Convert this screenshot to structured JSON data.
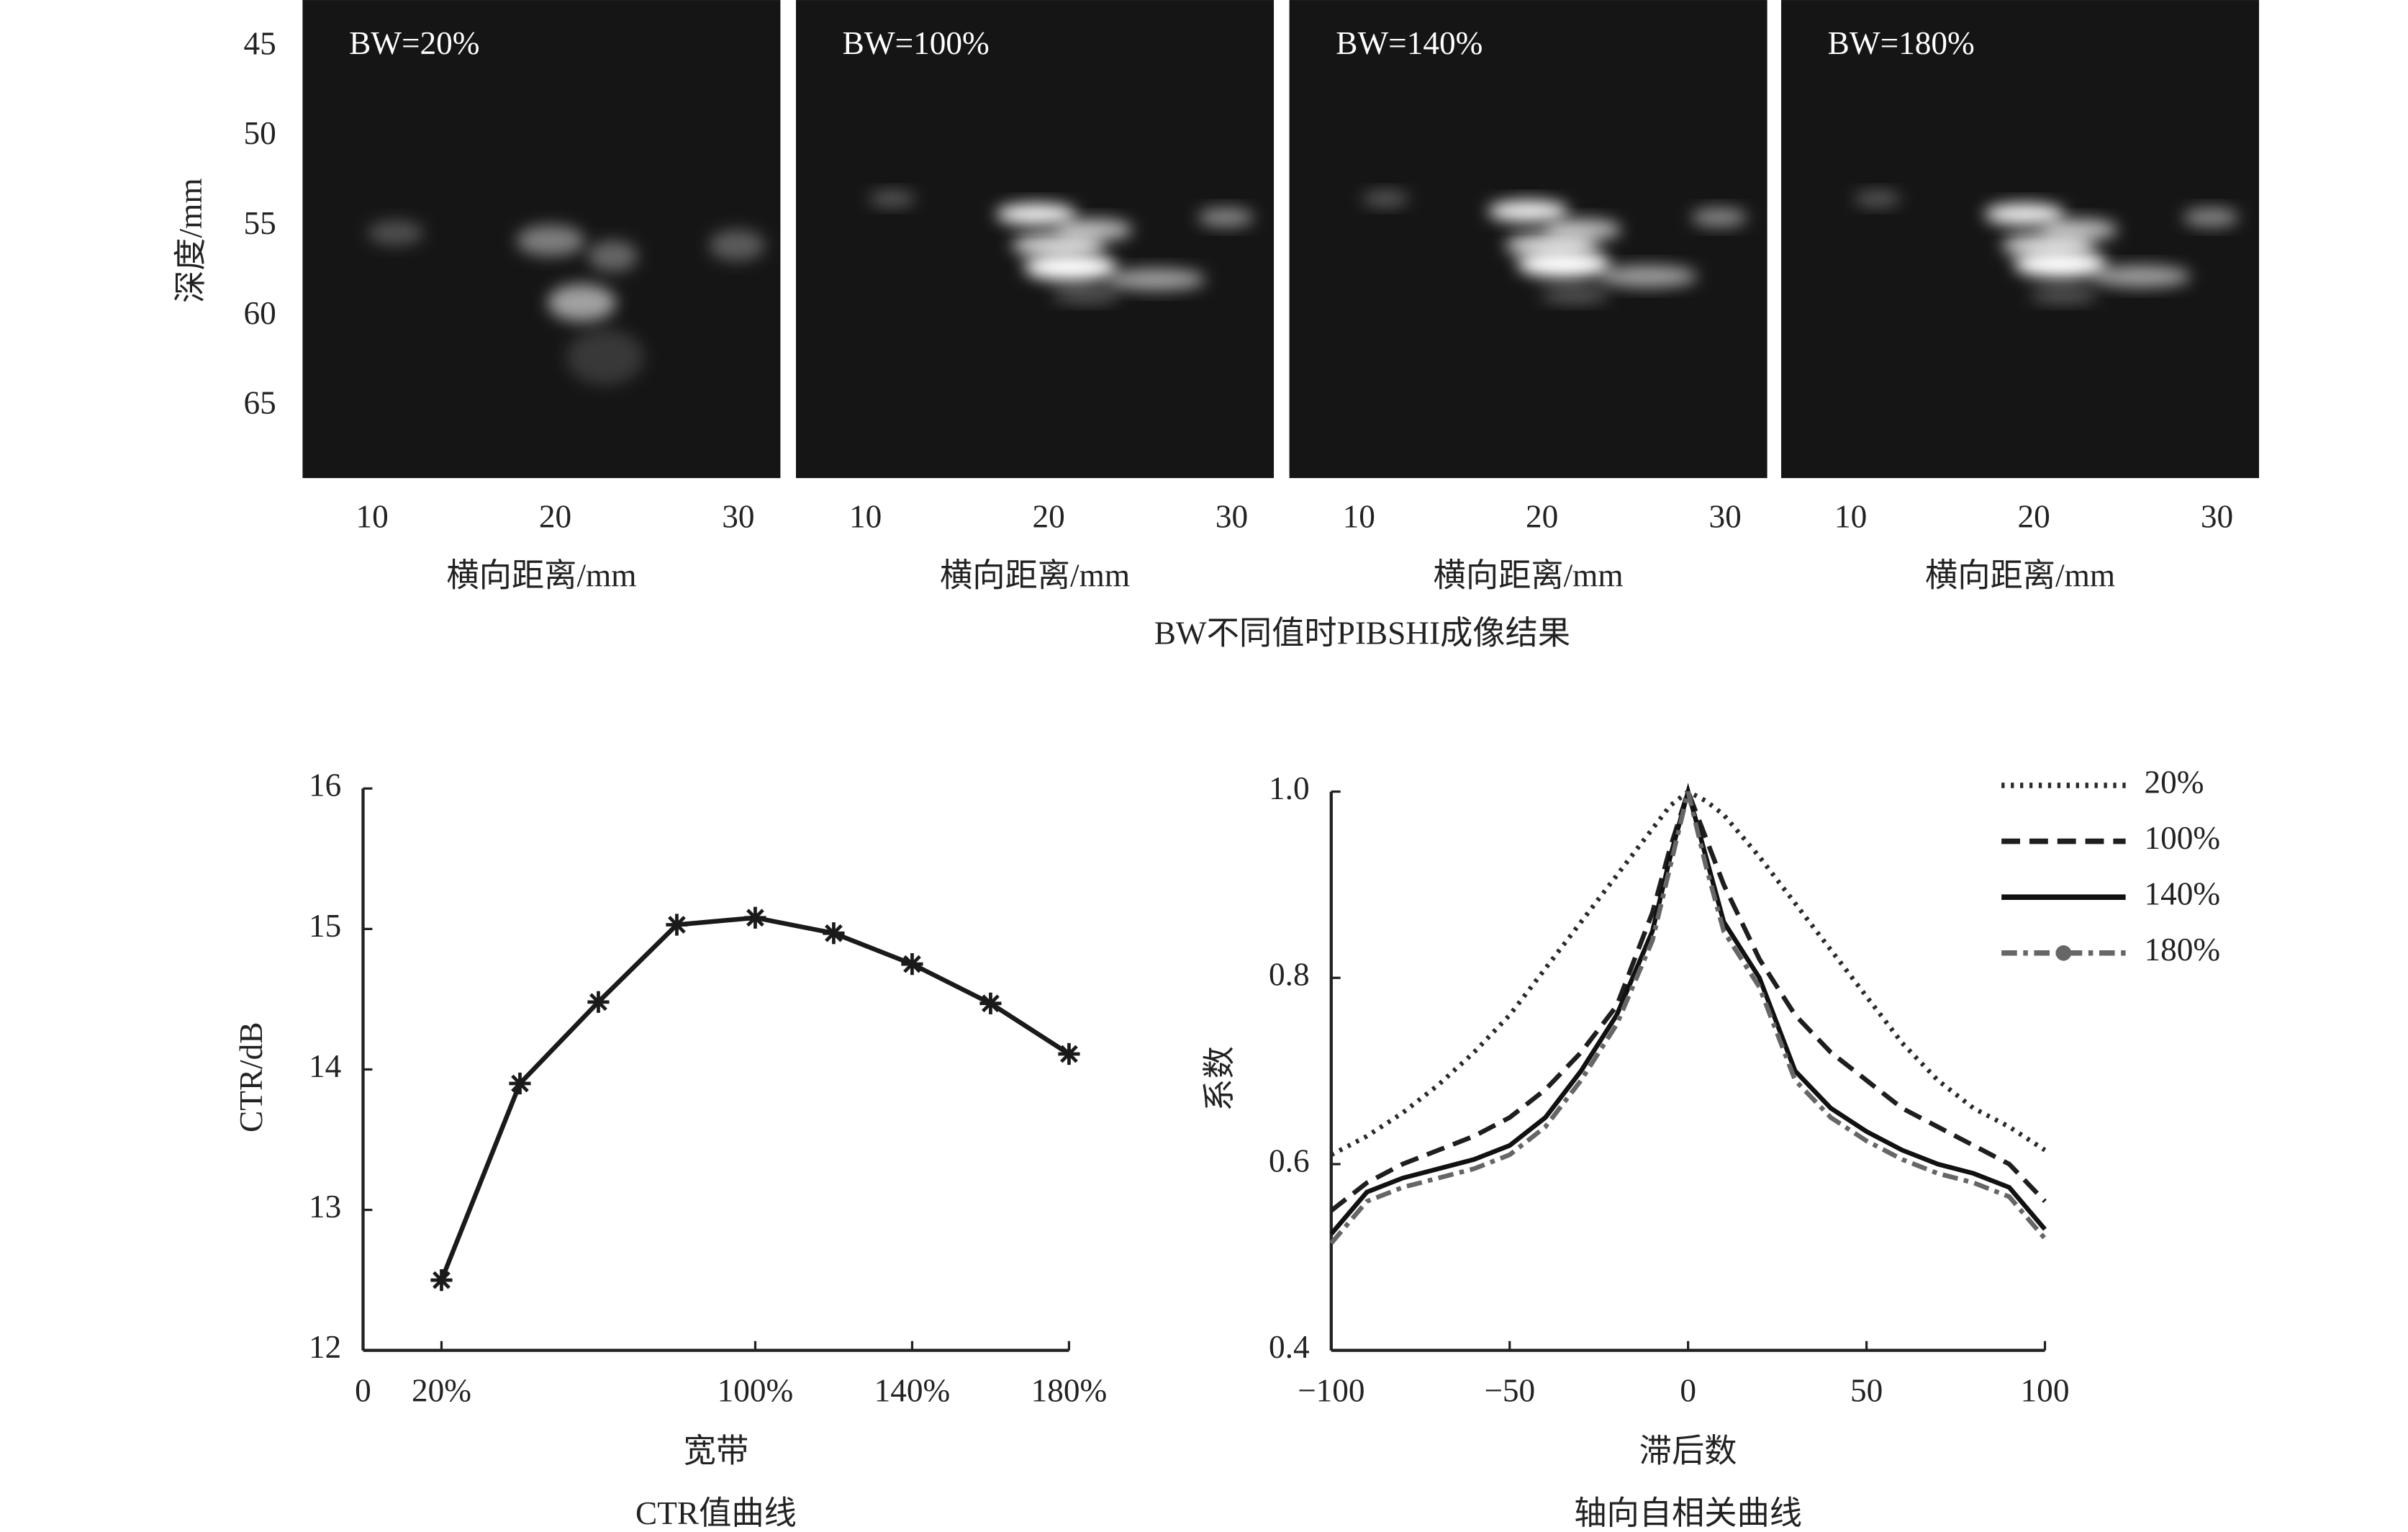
{
  "chart_data": [
    {
      "type": "image",
      "title": "BW不同值时PIBSHI成像结果",
      "panels": [
        "BW=20%",
        "BW=100%",
        "BW=140%",
        "BW=180%"
      ],
      "xlabel": "横向距离/mm",
      "ylabel": "深度/mm",
      "xlim": [
        6.2,
        32.3
      ],
      "xticks": [
        10,
        20,
        30
      ],
      "ylim": [
        42.4,
        69
      ],
      "yticks": [
        45,
        50,
        55,
        60,
        65
      ]
    },
    {
      "type": "line",
      "title": "CTR值曲线",
      "xlabel": "宽带",
      "ylabel": "CTR/dB",
      "x": [
        20,
        40,
        60,
        80,
        100,
        120,
        140,
        160,
        180
      ],
      "series": [
        {
          "name": null,
          "color": "#1a1a1a",
          "values": [
            12.5,
            13.9,
            14.48,
            15.03,
            15.08,
            14.97,
            14.75,
            14.47,
            14.11
          ]
        }
      ],
      "xlim": [
        0,
        180
      ],
      "xticks": [
        0,
        {
          "value": 20,
          "label": "20%"
        },
        {
          "value": 100,
          "label": "100%"
        },
        {
          "value": 140,
          "label": "140%"
        },
        {
          "value": 180,
          "label": "180%"
        }
      ],
      "ylim": [
        12,
        16
      ],
      "yticks": [
        12,
        13,
        14,
        15,
        16
      ],
      "marker": "asterisk"
    },
    {
      "type": "line",
      "title": "轴向自相关曲线",
      "xlabel": "滞后数",
      "ylabel": "系数",
      "x": [
        -100,
        -90,
        -80,
        -70,
        -60,
        -50,
        -40,
        -30,
        -20,
        -10,
        -5,
        0,
        5,
        10,
        20,
        30,
        40,
        50,
        60,
        70,
        80,
        90,
        100
      ],
      "series": [
        {
          "name": "20%",
          "color": "#2a2a2a",
          "dash": "2,4",
          "values": [
            0.61,
            0.63,
            0.655,
            0.685,
            0.72,
            0.76,
            0.81,
            0.86,
            0.91,
            0.96,
            0.985,
            1.0,
            0.99,
            0.975,
            0.93,
            0.88,
            0.83,
            0.78,
            0.73,
            0.69,
            0.66,
            0.64,
            0.615
          ]
        },
        {
          "name": "100%",
          "color": "#1e1e1e",
          "dash": "12,6",
          "values": [
            0.55,
            0.58,
            0.6,
            0.615,
            0.63,
            0.65,
            0.68,
            0.72,
            0.77,
            0.87,
            0.94,
            1.0,
            0.95,
            0.9,
            0.82,
            0.76,
            0.72,
            0.69,
            0.66,
            0.64,
            0.62,
            0.6,
            0.56
          ]
        },
        {
          "name": "140%",
          "color": "#111111",
          "dash": "none",
          "values": [
            0.525,
            0.57,
            0.585,
            0.595,
            0.605,
            0.62,
            0.65,
            0.7,
            0.76,
            0.85,
            0.93,
            1.0,
            0.93,
            0.86,
            0.8,
            0.7,
            0.66,
            0.635,
            0.615,
            0.6,
            0.59,
            0.575,
            0.53
          ]
        },
        {
          "name": "180%",
          "color": "#666666",
          "dash": "10,4,3,4",
          "marker": "circle",
          "values": [
            0.515,
            0.56,
            0.575,
            0.585,
            0.595,
            0.61,
            0.64,
            0.69,
            0.75,
            0.84,
            0.92,
            1.0,
            0.92,
            0.85,
            0.79,
            0.69,
            0.65,
            0.625,
            0.605,
            0.59,
            0.58,
            0.565,
            0.52
          ]
        }
      ],
      "xlim": [
        -100,
        100
      ],
      "xticks": [
        {
          "value": -100,
          "label": "−100"
        },
        {
          "value": -50,
          "label": "−50"
        },
        0,
        50,
        100
      ],
      "ylim": [
        0.4,
        1
      ],
      "yticks": [
        0.4,
        0.6,
        0.8,
        {
          "value": 1,
          "label": "1.0"
        }
      ],
      "legend": "top-right"
    }
  ]
}
